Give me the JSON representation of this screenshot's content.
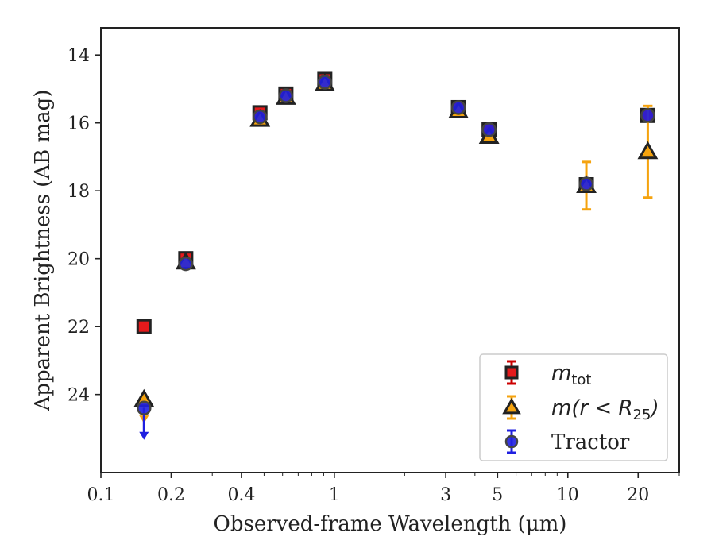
{
  "chart_data": {
    "type": "scatter",
    "xlabel": "Observed-frame Wavelength (μm)",
    "ylabel": "Apparent Brightness (AB mag)",
    "xscale": "log",
    "xlim": [
      0.1,
      30
    ],
    "ylim": [
      26.3,
      13.2
    ],
    "y_inverted": true,
    "x_ticks": [
      0.1,
      0.2,
      0.4,
      1,
      3,
      5,
      10,
      20
    ],
    "x_tick_labels": [
      "0.1",
      "0.2",
      "0.4",
      "1",
      "3",
      "5",
      "10",
      "20"
    ],
    "y_ticks": [
      14,
      16,
      18,
      20,
      22,
      24
    ],
    "y_tick_labels": [
      "14",
      "16",
      "18",
      "20",
      "22",
      "24"
    ],
    "grid": false,
    "legend": {
      "position": "lower-right",
      "entries": [
        {
          "series": "mtot",
          "label_main": "m",
          "label_sub": "tot"
        },
        {
          "series": "mr25",
          "label_main": "m(r < R",
          "label_sub": "25",
          "label_end": ")"
        },
        {
          "series": "tractor",
          "label_main": "Tractor"
        }
      ]
    },
    "series": [
      {
        "id": "mtot",
        "marker": "square",
        "color": "#e41a1c",
        "edge": "#222222",
        "error_color": "#cc0000",
        "points": [
          {
            "x": 0.153,
            "y": 22.0,
            "err": 0.1
          },
          {
            "x": 0.231,
            "y": 20.0,
            "err": 0.1
          },
          {
            "x": 0.48,
            "y": 15.7,
            "err": 0.05
          },
          {
            "x": 0.62,
            "y": 15.15,
            "err": 0.05
          },
          {
            "x": 0.91,
            "y": 14.72,
            "err": 0.05
          },
          {
            "x": 3.4,
            "y": 15.55,
            "err": 0.05
          },
          {
            "x": 4.6,
            "y": 16.2,
            "err": 0.05
          },
          {
            "x": 12.0,
            "y": 17.82,
            "err": 0.05
          },
          {
            "x": 22.0,
            "y": 15.78,
            "err": 0.05
          }
        ]
      },
      {
        "id": "mr25",
        "marker": "triangle",
        "color": "#f5a30e",
        "edge": "#222222",
        "error_color": "#f5a30e",
        "points": [
          {
            "x": 0.153,
            "y": 24.15,
            "upper_limit": true
          },
          {
            "x": 0.231,
            "y": 20.1
          },
          {
            "x": 0.48,
            "y": 15.9
          },
          {
            "x": 0.62,
            "y": 15.25
          },
          {
            "x": 0.91,
            "y": 14.85
          },
          {
            "x": 3.4,
            "y": 15.65
          },
          {
            "x": 4.6,
            "y": 16.4
          },
          {
            "x": 12.0,
            "y": 17.85,
            "err_low": 0.7,
            "err_high": 0.7
          },
          {
            "x": 22.0,
            "y": 16.85,
            "err_low": 1.35,
            "err_high": 1.35
          }
        ]
      },
      {
        "id": "tractor",
        "marker": "circle",
        "color": "#1f1fe0",
        "edge": "#444444",
        "error_color": "#1f1fe0",
        "points": [
          {
            "x": 0.153,
            "y": 24.4,
            "upper_limit": true
          },
          {
            "x": 0.231,
            "y": 20.15
          },
          {
            "x": 0.48,
            "y": 15.82
          },
          {
            "x": 0.62,
            "y": 15.2
          },
          {
            "x": 0.91,
            "y": 14.8
          },
          {
            "x": 3.4,
            "y": 15.55
          },
          {
            "x": 4.6,
            "y": 16.2
          },
          {
            "x": 12.0,
            "y": 17.8
          },
          {
            "x": 22.0,
            "y": 15.78
          }
        ]
      }
    ]
  }
}
